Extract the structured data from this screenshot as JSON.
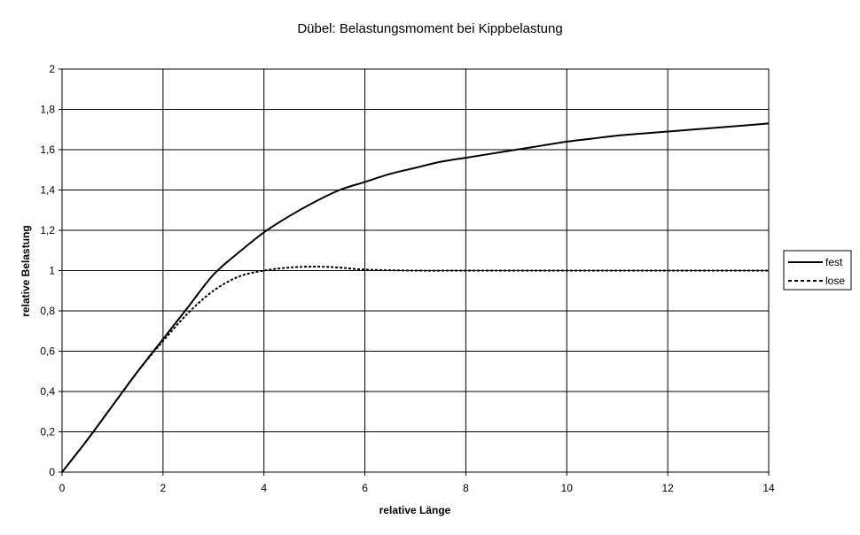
{
  "chart_data": {
    "type": "line",
    "title": "Dübel: Belastungsmoment bei Kippbelastung",
    "xlabel": "relative Länge",
    "ylabel": "relative Belastung",
    "xlim": [
      0,
      14
    ],
    "ylim": [
      0,
      2
    ],
    "x_ticks": [
      "0",
      "2",
      "4",
      "6",
      "8",
      "10",
      "12",
      "14"
    ],
    "y_ticks": [
      "0",
      "0,2",
      "0,4",
      "0,6",
      "0,8",
      "1",
      "1,2",
      "1,4",
      "1,6",
      "1,8",
      "2"
    ],
    "grid": true,
    "legend_position": "right",
    "series": [
      {
        "name": "fest",
        "style": "solid",
        "color": "#000000",
        "x": [
          0,
          0.5,
          1,
          1.5,
          2,
          2.5,
          3,
          3.5,
          4,
          4.5,
          5,
          5.5,
          6,
          6.5,
          7,
          7.5,
          8,
          8.5,
          9,
          9.5,
          10,
          10.5,
          11,
          11.5,
          12,
          12.5,
          13,
          13.5,
          14
        ],
        "y": [
          0,
          0.16,
          0.33,
          0.5,
          0.66,
          0.82,
          0.98,
          1.09,
          1.19,
          1.27,
          1.34,
          1.4,
          1.44,
          1.48,
          1.51,
          1.54,
          1.56,
          1.58,
          1.6,
          1.62,
          1.64,
          1.655,
          1.67,
          1.68,
          1.69,
          1.7,
          1.71,
          1.72,
          1.73
        ]
      },
      {
        "name": "lose",
        "style": "dashed",
        "color": "#000000",
        "x": [
          0,
          0.5,
          1,
          1.5,
          2,
          2.5,
          3,
          3.5,
          4,
          4.5,
          5,
          5.5,
          6,
          7,
          8,
          9,
          10,
          11,
          12,
          13,
          14
        ],
        "y": [
          0,
          0.16,
          0.33,
          0.5,
          0.65,
          0.79,
          0.9,
          0.97,
          1.0,
          1.015,
          1.02,
          1.015,
          1.005,
          1.0,
          1.0,
          1.0,
          1.0,
          1.0,
          1.0,
          1.0,
          1.0
        ]
      }
    ]
  }
}
